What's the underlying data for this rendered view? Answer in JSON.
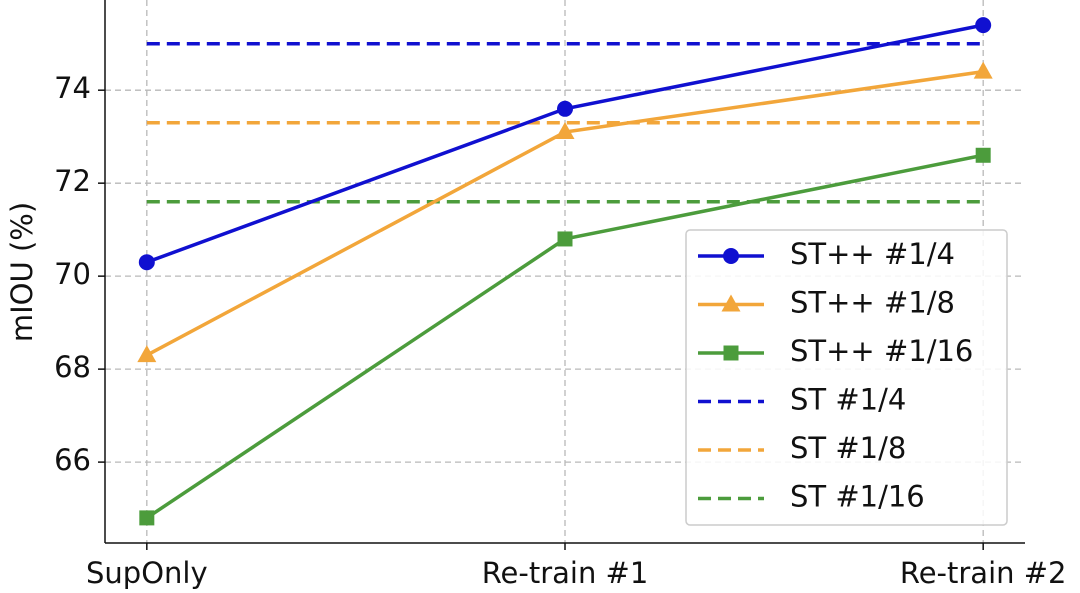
{
  "chart_data": {
    "type": "line",
    "y_label": "mIOU (%)",
    "categories": [
      "SupOnly",
      "Re-train #1",
      "Re-train #2"
    ],
    "series": [
      {
        "name": "ST++ #1/4",
        "color": "#1010d0",
        "style": "solid",
        "marker": "circle",
        "values": [
          70.3,
          73.6,
          75.4
        ]
      },
      {
        "name": "ST++ #1/8",
        "color": "#f2a63a",
        "style": "solid",
        "marker": "triangle",
        "values": [
          68.3,
          73.1,
          74.4
        ]
      },
      {
        "name": "ST++ #1/16",
        "color": "#4c9c3c",
        "style": "solid",
        "marker": "square",
        "values": [
          64.8,
          70.8,
          72.6
        ]
      },
      {
        "name": "ST #1/4",
        "color": "#1010d0",
        "style": "dashed",
        "marker": "none",
        "values": [
          75.0,
          75.0,
          75.0
        ]
      },
      {
        "name": "ST #1/8",
        "color": "#f2a63a",
        "style": "dashed",
        "marker": "none",
        "values": [
          73.3,
          73.3,
          73.3
        ]
      },
      {
        "name": "ST #1/16",
        "color": "#4c9c3c",
        "style": "dashed",
        "marker": "none",
        "values": [
          71.6,
          71.6,
          71.6
        ]
      }
    ],
    "ylim": [
      64.26,
      75.94
    ],
    "yticks": [
      66,
      68,
      70,
      72,
      74
    ],
    "grid": true,
    "legend": "lower right"
  }
}
